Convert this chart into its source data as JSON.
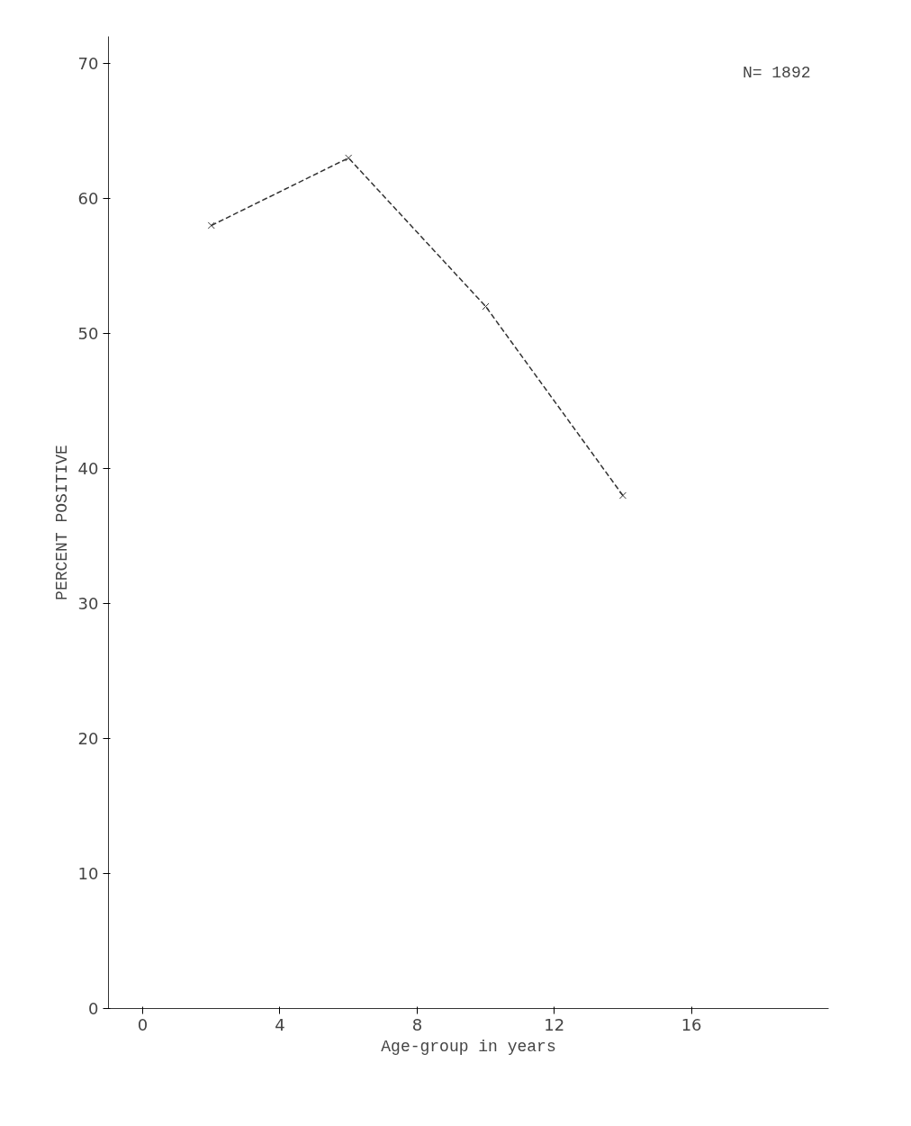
{
  "chart_data": {
    "type": "line",
    "xlabel": "Age-group in years",
    "ylabel": "PERCENT POSITIVE",
    "x": [
      2,
      6,
      10,
      14
    ],
    "series": [
      {
        "color": "#333333",
        "values": [
          58,
          63,
          52,
          38
        ]
      }
    ],
    "xlim": [
      -1,
      20
    ],
    "ylim": [
      0,
      72
    ],
    "xticks": [
      0,
      4,
      8,
      12,
      16
    ],
    "yticks": [
      0,
      10,
      20,
      30,
      40,
      50,
      60,
      70
    ],
    "marker": "cross",
    "line_style": "dashed",
    "grid": false,
    "annotations": [
      "N= 1892"
    ]
  }
}
